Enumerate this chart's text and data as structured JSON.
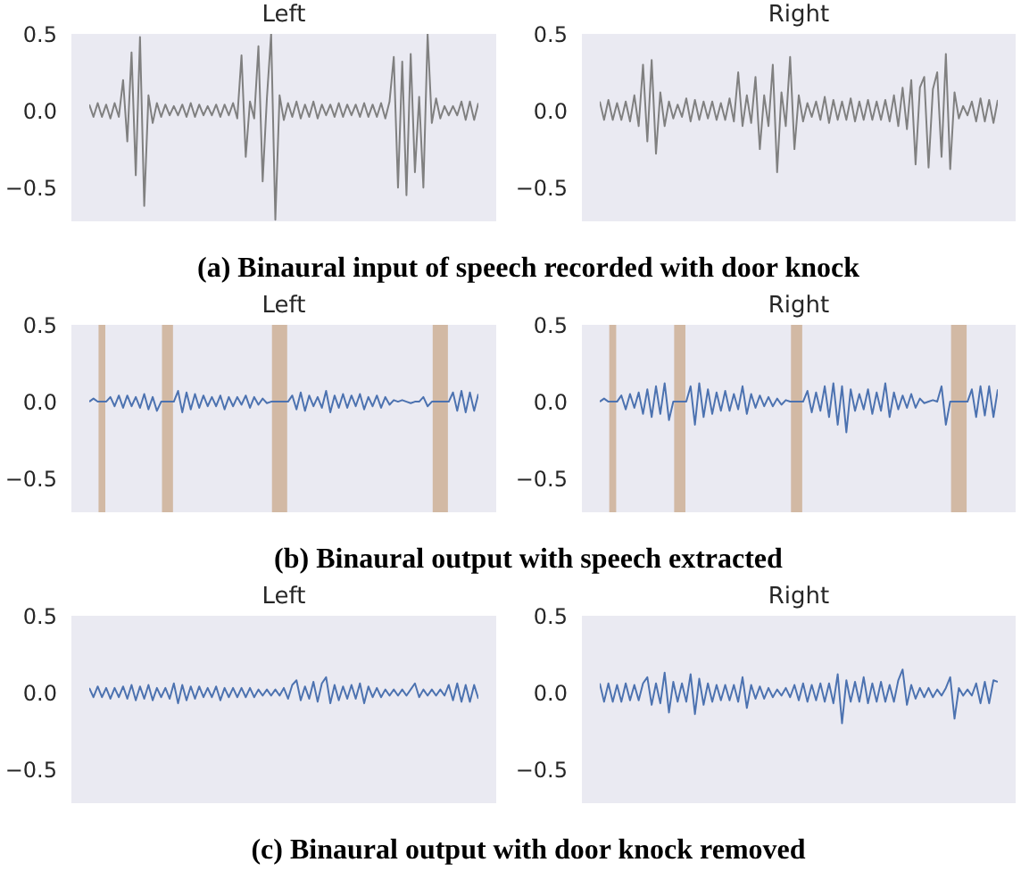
{
  "chart_data": [
    {
      "type": "line",
      "title": "Left",
      "color": "#808080",
      "annotations": [
        "(a) Binaural input of speech recorded with door knock"
      ],
      "ylim": [
        -0.72,
        0.5
      ],
      "yticks": [
        {
          "value": 0.5,
          "label": "0.5"
        },
        {
          "value": 0,
          "label": "0.0"
        },
        {
          "value": -0.5,
          "label": "−0.5"
        }
      ],
      "tick_labels": "y",
      "categories": [
        null,
        null,
        null,
        null,
        null,
        null,
        null,
        null,
        null,
        null,
        null,
        null,
        null,
        null,
        null,
        null,
        null,
        null,
        null,
        null,
        null,
        null,
        null,
        null,
        null,
        null,
        null,
        null,
        null,
        null,
        null,
        null,
        null,
        null,
        null,
        null,
        null,
        null,
        null,
        null,
        null,
        null,
        null,
        null,
        null,
        null,
        null,
        null,
        null,
        null,
        null,
        null,
        null,
        null,
        null,
        null,
        null,
        null,
        null,
        null,
        null,
        null,
        null,
        null,
        null,
        null,
        null,
        null,
        null,
        null,
        null,
        null,
        null,
        null,
        null,
        null,
        null,
        null,
        null,
        null,
        null,
        null,
        null,
        null,
        null,
        null,
        null,
        null,
        null,
        null,
        null,
        null,
        null
      ],
      "values": [
        0.04,
        -0.04,
        0.05,
        -0.04,
        0.04,
        -0.05,
        0.05,
        -0.04,
        0.2,
        -0.2,
        0.38,
        -0.42,
        0.48,
        -0.62,
        0.1,
        -0.08,
        0.05,
        -0.04,
        0.04,
        -0.03,
        0.03,
        -0.03,
        0.04,
        -0.04,
        0.05,
        -0.04,
        0.04,
        -0.03,
        0.03,
        -0.03,
        0.04,
        -0.04,
        0.04,
        -0.03,
        0.05,
        -0.05,
        0.36,
        -0.3,
        0.06,
        -0.05,
        0.42,
        -0.46,
        0.08,
        0.5,
        -0.71,
        0.1,
        -0.06,
        0.05,
        -0.04,
        0.06,
        -0.05,
        0.04,
        -0.04,
        0.06,
        -0.05,
        0.04,
        -0.03,
        0.04,
        -0.04,
        0.05,
        -0.04,
        0.04,
        -0.03,
        0.04,
        -0.04,
        0.05,
        -0.04,
        0.04,
        -0.04,
        0.05,
        -0.05,
        0.06,
        0.35,
        -0.5,
        0.32,
        -0.55,
        0.37,
        -0.4,
        0.09,
        -0.5,
        0.5,
        -0.08,
        0.08,
        -0.05,
        0.03,
        -0.03,
        0.03,
        -0.03,
        0.06,
        -0.06,
        0.06,
        -0.06,
        0.05
      ]
    },
    {
      "type": "line",
      "title": "Right",
      "color": "#808080",
      "ylim": [
        -0.72,
        0.5
      ],
      "yticks": [
        {
          "value": 0.5,
          "label": "0.5"
        },
        {
          "value": 0,
          "label": "0.0"
        },
        {
          "value": -0.5,
          "label": "−0.5"
        }
      ],
      "tick_labels": "y",
      "categories": [
        null,
        null,
        null,
        null,
        null,
        null,
        null,
        null,
        null,
        null,
        null,
        null,
        null,
        null,
        null,
        null,
        null,
        null,
        null,
        null,
        null,
        null,
        null,
        null,
        null,
        null,
        null,
        null,
        null,
        null,
        null,
        null,
        null,
        null,
        null,
        null,
        null,
        null,
        null,
        null,
        null,
        null,
        null,
        null,
        null,
        null,
        null,
        null,
        null,
        null,
        null,
        null,
        null,
        null,
        null,
        null,
        null,
        null,
        null,
        null,
        null,
        null,
        null,
        null,
        null,
        null,
        null,
        null,
        null,
        null,
        null,
        null,
        null,
        null,
        null,
        null,
        null,
        null,
        null,
        null,
        null,
        null,
        null,
        null,
        null,
        null,
        null,
        null,
        null,
        null,
        null,
        null,
        null
      ],
      "values": [
        0.06,
        -0.06,
        0.07,
        -0.06,
        0.05,
        -0.06,
        0.06,
        -0.07,
        0.1,
        -0.1,
        0.3,
        -0.2,
        0.33,
        -0.28,
        0.12,
        -0.1,
        0.06,
        -0.05,
        0.04,
        -0.04,
        0.08,
        -0.07,
        0.07,
        -0.06,
        0.06,
        -0.05,
        0.06,
        -0.06,
        0.05,
        -0.06,
        0.08,
        -0.07,
        0.25,
        -0.1,
        0.1,
        -0.08,
        0.22,
        -0.25,
        0.1,
        -0.1,
        0.3,
        -0.4,
        0.12,
        -0.1,
        0.35,
        -0.25,
        0.1,
        -0.07,
        0.05,
        -0.04,
        0.06,
        -0.06,
        0.09,
        -0.08,
        0.07,
        -0.06,
        0.06,
        -0.06,
        0.08,
        -0.07,
        0.06,
        -0.06,
        0.07,
        -0.06,
        0.06,
        -0.06,
        0.07,
        -0.07,
        0.1,
        -0.1,
        0.15,
        -0.12,
        0.2,
        -0.35,
        0.15,
        0.22,
        -0.37,
        0.14,
        0.25,
        -0.3,
        0.37,
        -0.38,
        0.12,
        -0.05,
        0.03,
        -0.03,
        0.06,
        -0.07,
        0.08,
        -0.07,
        0.07,
        -0.08,
        0.07
      ]
    },
    {
      "type": "line",
      "title": "Left",
      "color": "#4c72b0",
      "annotations": [
        "(b) Binaural output with speech extracted"
      ],
      "ylim": [
        -0.72,
        0.5
      ],
      "yticks": [
        {
          "value": 0.5,
          "label": "0.5"
        },
        {
          "value": 0,
          "label": "0.0"
        },
        {
          "value": -0.5,
          "label": "−0.5"
        }
      ],
      "tick_labels": "y",
      "categories": [
        null,
        null,
        null,
        null,
        null,
        null,
        null,
        null,
        null,
        null,
        null,
        null,
        null,
        null,
        null,
        null,
        null,
        null,
        null,
        null,
        null,
        null,
        null,
        null,
        null,
        null,
        null,
        null,
        null,
        null,
        null,
        null,
        null,
        null,
        null,
        null,
        null,
        null,
        null,
        null,
        null,
        null,
        null,
        null,
        null,
        null,
        null,
        null,
        null,
        null,
        null,
        null,
        null,
        null,
        null,
        null,
        null,
        null,
        null,
        null,
        null,
        null,
        null,
        null,
        null,
        null,
        null,
        null,
        null,
        null,
        null,
        null,
        null,
        null,
        null,
        null,
        null,
        null,
        null,
        null,
        null,
        null,
        null,
        null,
        null,
        null,
        null,
        null,
        null,
        null,
        null,
        null,
        null
      ],
      "values": [
        0,
        0.02,
        0,
        0,
        0,
        0.03,
        -0.03,
        0.04,
        -0.04,
        0.04,
        -0.03,
        0.03,
        -0.04,
        0.05,
        -0.05,
        0.03,
        -0.06,
        0,
        0,
        0,
        0,
        0.07,
        -0.07,
        0.06,
        -0.05,
        0.05,
        -0.04,
        0.04,
        -0.03,
        0.03,
        -0.03,
        0.04,
        -0.05,
        0.03,
        -0.03,
        0.03,
        -0.02,
        0.04,
        -0.04,
        0.03,
        -0.02,
        0.02,
        -0.01,
        0,
        0,
        0,
        0,
        0,
        0.04,
        -0.05,
        0.06,
        -0.06,
        0.04,
        -0.03,
        0.03,
        -0.04,
        0.07,
        -0.07,
        0.04,
        -0.04,
        0.05,
        -0.04,
        0.04,
        -0.03,
        0.05,
        -0.05,
        0.03,
        -0.03,
        0.04,
        -0.04,
        0.03,
        -0.02,
        0.01,
        0,
        0.01,
        0,
        -0.01,
        0,
        0,
        0.03,
        -0.03,
        0,
        0,
        0,
        0,
        0,
        0.06,
        -0.06,
        0.07,
        -0.07,
        0.06,
        -0.06,
        0.05
      ]
    },
    {
      "type": "line",
      "title": "Right",
      "color": "#4c72b0",
      "ylim": [
        -0.72,
        0.5
      ],
      "yticks": [
        {
          "value": 0.5,
          "label": "0.5"
        },
        {
          "value": 0,
          "label": "0.0"
        },
        {
          "value": -0.5,
          "label": "−0.5"
        }
      ],
      "tick_labels": "y",
      "categories": [
        null,
        null,
        null,
        null,
        null,
        null,
        null,
        null,
        null,
        null,
        null,
        null,
        null,
        null,
        null,
        null,
        null,
        null,
        null,
        null,
        null,
        null,
        null,
        null,
        null,
        null,
        null,
        null,
        null,
        null,
        null,
        null,
        null,
        null,
        null,
        null,
        null,
        null,
        null,
        null,
        null,
        null,
        null,
        null,
        null,
        null,
        null,
        null,
        null,
        null,
        null,
        null,
        null,
        null,
        null,
        null,
        null,
        null,
        null,
        null,
        null,
        null,
        null,
        null,
        null,
        null,
        null,
        null,
        null,
        null,
        null,
        null,
        null,
        null,
        null,
        null,
        null,
        null,
        null,
        null,
        null,
        null,
        null,
        null,
        null,
        null,
        null,
        null,
        null,
        null,
        null,
        null,
        null
      ],
      "values": [
        0,
        0.02,
        0,
        0,
        0,
        0.04,
        -0.05,
        0.05,
        -0.04,
        0.06,
        -0.08,
        0.08,
        -0.1,
        0.1,
        -0.08,
        0.12,
        -0.12,
        0,
        0,
        0,
        0,
        0.1,
        -0.15,
        0.12,
        -0.1,
        0.08,
        -0.08,
        0.06,
        -0.06,
        0.07,
        -0.06,
        0.05,
        -0.05,
        0.1,
        -0.08,
        0.05,
        -0.04,
        0.04,
        -0.03,
        0.03,
        -0.03,
        0.02,
        -0.02,
        0.01,
        0,
        0,
        0,
        0,
        0.07,
        -0.07,
        0.06,
        -0.06,
        0.1,
        -0.1,
        0.12,
        -0.15,
        0.1,
        -0.2,
        0.08,
        -0.06,
        0.05,
        -0.05,
        0.08,
        -0.08,
        0.06,
        -0.06,
        0.12,
        -0.1,
        0.06,
        -0.05,
        0.04,
        -0.04,
        0.05,
        -0.04,
        0.02,
        -0.01,
        0,
        0.01,
        0,
        0.1,
        -0.15,
        0,
        0,
        0,
        0,
        0,
        0.08,
        -0.1,
        0.1,
        -0.09,
        0.1,
        -0.1,
        0.08
      ]
    },
    {
      "type": "line",
      "title": "Left",
      "color": "#4c72b0",
      "annotations": [
        "(c) Binaural output with door knock removed"
      ],
      "ylim": [
        -0.72,
        0.5
      ],
      "yticks": [
        {
          "value": 0.5,
          "label": "0.5"
        },
        {
          "value": 0,
          "label": "0.0"
        },
        {
          "value": -0.5,
          "label": "−0.5"
        }
      ],
      "tick_labels": "y",
      "categories": [
        null,
        null,
        null,
        null,
        null,
        null,
        null,
        null,
        null,
        null,
        null,
        null,
        null,
        null,
        null,
        null,
        null,
        null,
        null,
        null,
        null,
        null,
        null,
        null,
        null,
        null,
        null,
        null,
        null,
        null,
        null,
        null,
        null,
        null,
        null,
        null,
        null,
        null,
        null,
        null,
        null,
        null,
        null,
        null,
        null,
        null,
        null,
        null,
        null,
        null,
        null,
        null,
        null,
        null,
        null,
        null,
        null,
        null,
        null,
        null,
        null,
        null,
        null,
        null,
        null,
        null,
        null,
        null,
        null,
        null,
        null,
        null,
        null,
        null,
        null,
        null,
        null,
        null,
        null,
        null,
        null,
        null,
        null,
        null,
        null,
        null,
        null,
        null,
        null,
        null,
        null,
        null,
        null
      ],
      "values": [
        0.03,
        -0.03,
        0.04,
        -0.03,
        0.03,
        -0.04,
        0.03,
        -0.03,
        0.04,
        -0.04,
        0.05,
        -0.05,
        0.04,
        -0.04,
        0.05,
        -0.05,
        0.03,
        -0.03,
        0.03,
        -0.04,
        0.06,
        -0.07,
        0.05,
        -0.05,
        0.04,
        -0.04,
        0.04,
        -0.03,
        0.03,
        -0.03,
        0.04,
        -0.05,
        0.03,
        -0.03,
        0.03,
        -0.03,
        0.03,
        -0.03,
        0.03,
        -0.03,
        0.02,
        -0.02,
        0.02,
        -0.02,
        0.02,
        -0.02,
        0.03,
        -0.04,
        0.05,
        0.08,
        -0.05,
        0.04,
        -0.04,
        0.07,
        -0.06,
        0.06,
        0.1,
        -0.07,
        0.05,
        -0.05,
        0.04,
        -0.04,
        0.05,
        -0.04,
        0.06,
        -0.07,
        0.04,
        -0.03,
        0.03,
        -0.03,
        0.02,
        -0.02,
        0.02,
        -0.02,
        0.02,
        -0.02,
        0.02,
        0.06,
        -0.03,
        0.02,
        -0.02,
        0.02,
        -0.02,
        0.02,
        -0.02,
        0.05,
        -0.05,
        0.06,
        -0.06,
        0.05,
        -0.06,
        0.05,
        -0.04
      ]
    },
    {
      "type": "line",
      "title": "Right",
      "color": "#4c72b0",
      "ylim": [
        -0.72,
        0.5
      ],
      "yticks": [
        {
          "value": 0.5,
          "label": "0.5"
        },
        {
          "value": 0,
          "label": "0.0"
        },
        {
          "value": -0.5,
          "label": "−0.5"
        }
      ],
      "tick_labels": "y",
      "categories": [
        null,
        null,
        null,
        null,
        null,
        null,
        null,
        null,
        null,
        null,
        null,
        null,
        null,
        null,
        null,
        null,
        null,
        null,
        null,
        null,
        null,
        null,
        null,
        null,
        null,
        null,
        null,
        null,
        null,
        null,
        null,
        null,
        null,
        null,
        null,
        null,
        null,
        null,
        null,
        null,
        null,
        null,
        null,
        null,
        null,
        null,
        null,
        null,
        null,
        null,
        null,
        null,
        null,
        null,
        null,
        null,
        null,
        null,
        null,
        null,
        null,
        null,
        null,
        null,
        null,
        null,
        null,
        null,
        null,
        null,
        null,
        null,
        null,
        null,
        null,
        null,
        null,
        null,
        null,
        null,
        null,
        null,
        null,
        null,
        null,
        null,
        null,
        null,
        null,
        null,
        null,
        null,
        null
      ],
      "values": [
        0.06,
        -0.06,
        0.06,
        -0.06,
        0.05,
        -0.06,
        0.06,
        -0.05,
        0.05,
        -0.05,
        0.06,
        0.1,
        -0.08,
        0.06,
        -0.07,
        0.13,
        -0.13,
        0.07,
        -0.06,
        0.06,
        -0.06,
        0.12,
        -0.14,
        0.09,
        -0.08,
        0.06,
        -0.06,
        0.05,
        -0.05,
        0.05,
        -0.05,
        0.05,
        -0.06,
        0.1,
        -0.1,
        0.05,
        -0.04,
        0.04,
        -0.04,
        0.03,
        -0.03,
        0.02,
        -0.02,
        0.03,
        -0.03,
        0.05,
        -0.05,
        0.06,
        -0.06,
        0.05,
        -0.05,
        0.06,
        -0.06,
        0.06,
        -0.07,
        0.12,
        -0.2,
        0.08,
        -0.06,
        0.07,
        -0.06,
        0.1,
        -0.07,
        0.06,
        -0.06,
        0.07,
        -0.06,
        0.05,
        -0.06,
        0.08,
        0.15,
        -0.08,
        0.05,
        -0.04,
        0.03,
        -0.03,
        0.03,
        -0.03,
        0.02,
        -0.02,
        0.03,
        0.1,
        -0.17,
        0.03,
        -0.02,
        0.02,
        -0.02,
        0.06,
        -0.07,
        0.07,
        -0.07,
        0.08,
        0.07
      ]
    }
  ]
}
